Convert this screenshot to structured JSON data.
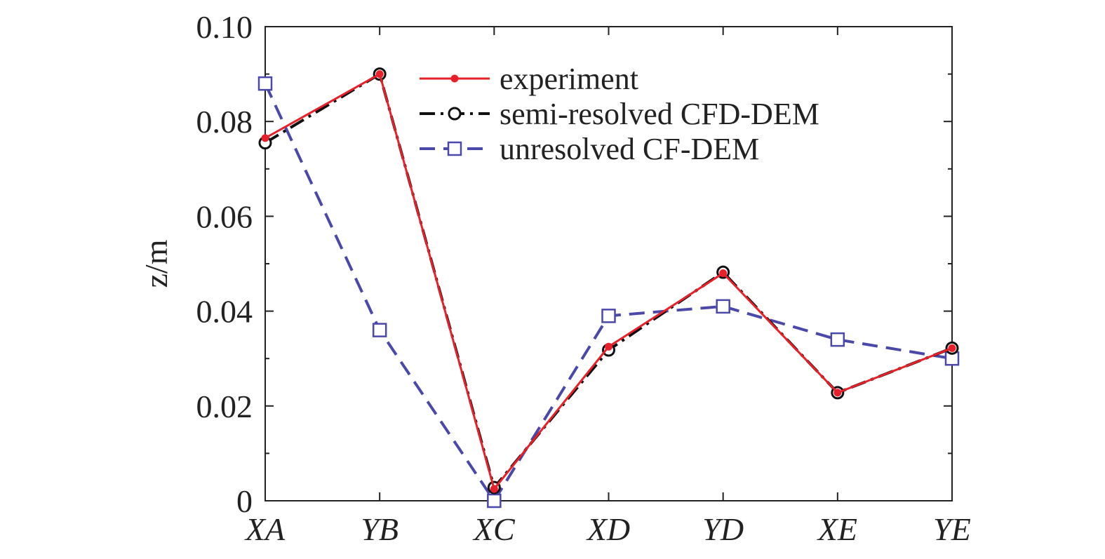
{
  "chart_data": {
    "type": "line",
    "title": "",
    "xlabel": "",
    "ylabel": "z/m",
    "categories": [
      "XA",
      "YB",
      "XC",
      "XD",
      "YD",
      "XE",
      "YE"
    ],
    "ylim": [
      0,
      0.1
    ],
    "yticks": [
      0,
      0.02,
      0.04,
      0.06,
      0.08,
      0.1
    ],
    "ytick_labels": [
      "0",
      "0.02",
      "0.04",
      "0.06",
      "0.08",
      "0.10"
    ],
    "grid": false,
    "legend_position": "top-right",
    "series": [
      {
        "name": "experiment",
        "values": [
          0.0765,
          0.09,
          0.0025,
          0.0325,
          0.048,
          0.0228,
          0.0322
        ],
        "color": "#e8202a",
        "line_style": "solid",
        "marker": "star"
      },
      {
        "name": "semi-resolved CFD-DEM",
        "values": [
          0.0755,
          0.09,
          0.0028,
          0.0318,
          0.0482,
          0.0228,
          0.0322
        ],
        "color": "#111111",
        "line_style": "dash-dot",
        "marker": "circle"
      },
      {
        "name": "unresolved CF-DEM",
        "values": [
          0.088,
          0.036,
          0.0,
          0.039,
          0.041,
          0.034,
          0.03
        ],
        "color": "#4a48a8",
        "line_style": "dashed",
        "marker": "square"
      }
    ]
  }
}
